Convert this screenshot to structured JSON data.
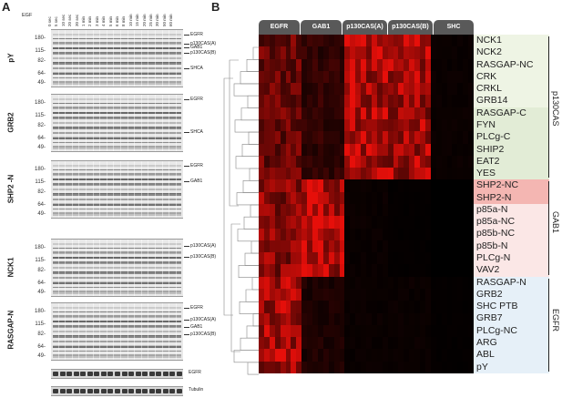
{
  "panel_a": {
    "letter": "A",
    "egf_label": "EGF",
    "timepoints": [
      "0 sec",
      "5 sec",
      "10 sec",
      "20 sec",
      "30 sec",
      "1 min",
      "2 min",
      "3 min",
      "4 min",
      "5 min",
      "6 min",
      "8 min",
      "10 min",
      "15 min",
      "20 min",
      "25 min",
      "30 min",
      "50 min",
      "60 min"
    ],
    "blots": [
      {
        "name": "pY",
        "mw": [
          "180-",
          "115-",
          "82-",
          "64-",
          "49-"
        ],
        "bands": [
          "EGFR",
          "p130CAS(A)",
          "GAB1",
          "p130CAS(B)",
          "SHCA"
        ]
      },
      {
        "name": "GRB2",
        "mw": [
          "180-",
          "115-",
          "82-",
          "64-",
          "49-"
        ],
        "bands": [
          "EGFR",
          "SHCA"
        ]
      },
      {
        "name": "SHP2 -N",
        "mw": [
          "180-",
          "115-",
          "82-",
          "64-",
          "49-"
        ],
        "bands": [
          "EGFR",
          "GAB1"
        ]
      },
      {
        "name": "NCK1",
        "mw": [
          "180-",
          "115-",
          "82-",
          "64-",
          "49-"
        ],
        "bands": [
          "p130CAS(A)",
          "p130CAS(B)"
        ]
      },
      {
        "name": "RASGAP-N",
        "mw": [
          "180-",
          "115-",
          "82-",
          "64-",
          "49-"
        ],
        "bands": [
          "EGFR",
          "p130CAS(A)",
          "GAB1",
          "p130CAS(B)"
        ]
      }
    ],
    "loading": [
      {
        "name": "EGFR"
      },
      {
        "name": "Tubulin"
      }
    ]
  },
  "panel_b": {
    "letter": "B",
    "columns": [
      "EGFR",
      "GAB1",
      "p130CAS(A)",
      "p130CAS(B)",
      "SHC"
    ],
    "rows": [
      "NCK1",
      "NCK2",
      "RASGAP-NC",
      "CRK",
      "CRKL",
      "GRB14",
      "RASGAP-C",
      "FYN",
      "PLCg-C",
      "SHIP2",
      "EAT2",
      "YES",
      "SHP2-NC",
      "SHP2-N",
      "p85a-N",
      "p85a-NC",
      "p85b-NC",
      "p85b-N",
      "PLCg-N",
      "VAV2",
      "RASGAP-N",
      "GRB2",
      "SHC PTB",
      "GRB7",
      "PLCg-NC",
      "ARG",
      "ABL",
      "pY"
    ],
    "groups": [
      {
        "name": "p130CAS"
      },
      {
        "name": "GAB1"
      },
      {
        "name": "EGFR"
      }
    ],
    "highlight_colors": {
      "green": "#e2ecd6",
      "light_green": "#eef4e4",
      "red": "#f4b6b2",
      "pink": "#fbe7e6",
      "blue": "#e6f0f8"
    }
  }
}
